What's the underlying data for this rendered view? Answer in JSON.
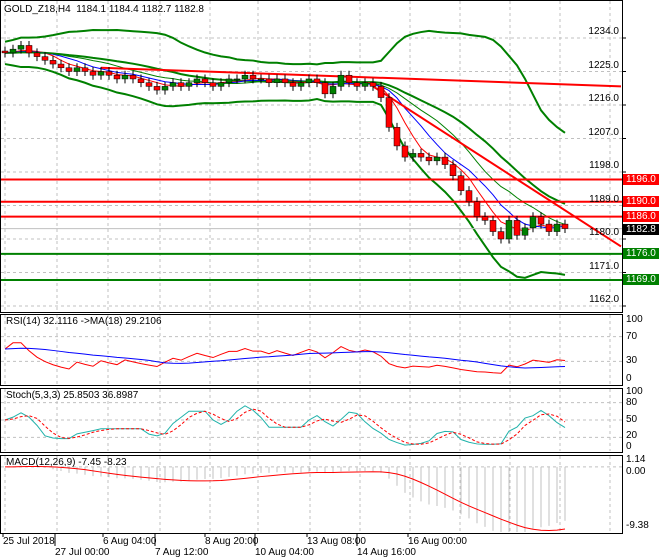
{
  "chart_data": {
    "type": "candlestick",
    "symbol_label": "GOLD_Z18,H4",
    "ohlc_label": "1184.1 1184.4 1182.7 1182.8",
    "price_ticks": [
      1234.0,
      1225.0,
      1216.0,
      1207.0,
      1198.0,
      1189.0,
      1180.0,
      1171.0,
      1162.0
    ],
    "ylim": [
      1162,
      1234
    ],
    "closes": [
      1230,
      1231,
      1232,
      1230,
      1229,
      1228,
      1227,
      1226,
      1225,
      1226,
      1225,
      1224,
      1225,
      1224,
      1223,
      1224,
      1223,
      1222,
      1221,
      1220,
      1221,
      1222,
      1221,
      1222,
      1223,
      1222,
      1221,
      1222,
      1223,
      1223,
      1224,
      1223,
      1223,
      1222,
      1223,
      1222,
      1221,
      1222,
      1223,
      1222,
      1219,
      1221,
      1224,
      1222,
      1221,
      1222,
      1221,
      1218,
      1210,
      1205,
      1202,
      1203,
      1202,
      1201,
      1202,
      1200,
      1197,
      1193,
      1190,
      1186,
      1185,
      1182,
      1180,
      1185,
      1181,
      1183,
      1186,
      1184,
      1182,
      1184,
      1182.8
    ],
    "levels": [
      {
        "price": 1196.0,
        "label": "1196.0",
        "color": "#ff0000"
      },
      {
        "price": 1190.0,
        "label": "1190.0",
        "color": "#ff0000"
      },
      {
        "price": 1186.0,
        "label": "1186.0",
        "color": "#ff0000"
      },
      {
        "price": 1176.0,
        "label": "1176.0",
        "color": "#008000"
      },
      {
        "price": 1169.0,
        "label": "1169.0",
        "color": "#008000"
      }
    ],
    "current_price": {
      "price": 1182.8,
      "label": "1182.8",
      "color": "#000000"
    },
    "trendlines": [
      {
        "from": [
          46,
          1221
        ],
        "to": [
          77,
          1178
        ],
        "color": "#ff0000"
      },
      {
        "from": [
          12,
          1226
        ],
        "to": [
          77,
          1221
        ],
        "color": "#ff0000"
      }
    ],
    "x_labels": [
      "25 Jul 2018",
      "27 Jul 00:00",
      "6 Aug 04:00",
      "7 Aug 12:00",
      "8 Aug 20:00",
      "10 Aug 04:00",
      "13 Aug 08:00",
      "14 Aug 16:00",
      "16 Aug 00:00"
    ],
    "colors": {
      "bull": "#008000",
      "bear": "#ff0000",
      "bands": "#008000",
      "grid": "#c0c0c0"
    },
    "rsi": {
      "label": "RSI(14) 32.1116  ->MA(18) 29.2106",
      "ticks": [
        100,
        70,
        30,
        0
      ],
      "line_color": "#ff0000",
      "ma_color": "#0000ff"
    },
    "stoch": {
      "label": "Stoch(5,3,3) 25.8503 36.8987",
      "ticks": [
        100,
        80,
        50,
        20,
        0
      ],
      "main_color": "#20b2aa",
      "signal_color": "#ff0000"
    },
    "macd": {
      "label": "MACD(12,26,9) -7.45 -8.23",
      "ticks": [
        "1.14",
        "0.00",
        "-9.38"
      ],
      "range": [
        -9.38,
        1.14
      ],
      "hist_color": "#c0c0c0",
      "signal_color": "#ff0000"
    }
  }
}
